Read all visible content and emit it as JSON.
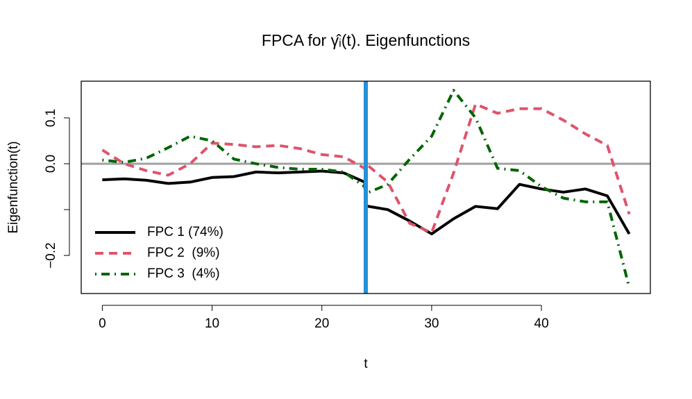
{
  "chart_data": {
    "type": "line",
    "title": "FPCA for γ̂ᵢ(t). Eigenfunctions",
    "x_label": "t",
    "y_label": "Eigenfunction(t)",
    "x": [
      0,
      2,
      4,
      6,
      8,
      10,
      12,
      14,
      16,
      18,
      20,
      22,
      23.9,
      24,
      26,
      28,
      30,
      32,
      34,
      36,
      38,
      40,
      42,
      44,
      46,
      48
    ],
    "series": [
      {
        "name": "FPC 1 (74%)",
        "color": "#000000",
        "dash": "solid",
        "values": [
          -0.035,
          -0.033,
          -0.036,
          -0.043,
          -0.04,
          -0.03,
          -0.028,
          -0.018,
          -0.02,
          -0.018,
          -0.016,
          -0.02,
          -0.04,
          -0.092,
          -0.1,
          -0.125,
          -0.153,
          -0.12,
          -0.093,
          -0.098,
          -0.045,
          -0.055,
          -0.062,
          -0.055,
          -0.07,
          -0.153
        ]
      },
      {
        "name": "FPC 2  (9%)",
        "color": "#df536b",
        "dash": "dashed",
        "values": [
          0.03,
          0.0,
          -0.015,
          -0.025,
          0.0,
          0.045,
          0.042,
          0.037,
          0.04,
          0.033,
          0.02,
          0.015,
          -0.01,
          0.0,
          -0.04,
          -0.13,
          -0.15,
          -0.02,
          0.13,
          0.11,
          0.12,
          0.12,
          0.095,
          0.065,
          0.04,
          -0.11
        ]
      },
      {
        "name": "FPC 3  (4%)",
        "color": "#006400",
        "dash": "dotdash",
        "values": [
          0.008,
          0.003,
          0.012,
          0.035,
          0.06,
          0.05,
          0.01,
          0.0,
          -0.008,
          -0.012,
          -0.012,
          -0.018,
          -0.05,
          -0.065,
          -0.045,
          0.01,
          0.06,
          0.16,
          0.1,
          -0.01,
          -0.015,
          -0.05,
          -0.075,
          -0.083,
          -0.083,
          -0.27
        ]
      }
    ],
    "xlim": [
      -1.92,
      49.92
    ],
    "ylim": [
      -0.283,
      0.18
    ],
    "xticks": [
      0,
      10,
      20,
      30,
      40
    ],
    "yticks": [
      {
        "value": -0.2,
        "label": "−0.2"
      },
      {
        "value": 0,
        "label": "0.0"
      },
      0.1
    ],
    "yticks_minor": [
      -0.1
    ],
    "vline": {
      "x": 24,
      "color": "#2491d9"
    },
    "hline": {
      "y": 0,
      "color": "#a0a0a0"
    },
    "legend": "bottomleft"
  }
}
